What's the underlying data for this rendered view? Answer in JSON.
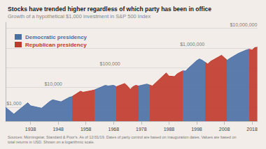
{
  "chart_data": {
    "type": "area",
    "title": "Stocks have trended higher regardless of which party has been in office",
    "subtitle": "Growth of a hypothetical $1,000 investment in S&P 500 Index",
    "footer": "Sources: Morningstar, Standard & Poor's. As of 12/31/19. Dates of party control are based on inauguration dates. Values are based on\ntotal returns in USD. Shown on a logarithmic scale.",
    "title_color": "#1a1a1a",
    "subtitle_color": "#888888",
    "background_color": "#f2ede8",
    "log": "y",
    "x": [
      1929,
      1932,
      1933,
      1937,
      1938,
      1942,
      1945,
      1946,
      1949,
      1952,
      1953,
      1956,
      1957,
      1960,
      1961,
      1965,
      1966,
      1968,
      1969,
      1972,
      1973,
      1974,
      1975,
      1976,
      1977,
      1980,
      1981,
      1982,
      1987,
      1988,
      1990,
      1991,
      1993,
      1994,
      1995,
      1998,
      1999,
      2000,
      2002,
      2003,
      2007,
      2009,
      2010,
      2013,
      2016,
      2017,
      2018,
      2019,
      2019.9
    ],
    "values": [
      1000,
      450,
      600,
      1700,
      1200,
      900,
      2000,
      2400,
      1900,
      3200,
      3500,
      6500,
      5800,
      7000,
      7500,
      13000,
      12000,
      13000,
      11000,
      16000,
      12000,
      8000,
      11000,
      13000,
      12000,
      15000,
      13500,
      12000,
      55000,
      38000,
      36000,
      50000,
      70000,
      68000,
      95000,
      230000,
      280000,
      240000,
      155000,
      210000,
      430000,
      240000,
      300000,
      530000,
      800000,
      870000,
      780000,
      1050000,
      1100000
    ],
    "xlim": [
      1929,
      2020
    ],
    "xticks": [
      1938,
      1948,
      1958,
      1968,
      1978,
      1988,
      1998,
      2008,
      2018
    ],
    "ylim": [
      200,
      20000000
    ],
    "yticks": [
      1000,
      10000,
      100000,
      1000000,
      10000000
    ],
    "grid": true,
    "tick_labels": "x",
    "legend": "upper left",
    "parties": [
      {
        "party": "dem",
        "name": "Democratic presidency",
        "color": "#4a6fa5"
      },
      {
        "party": "rep",
        "name": "Republican presidency",
        "color": "#c0392b"
      }
    ],
    "periods": [
      {
        "start": 1929,
        "end": 1933,
        "party": "dem"
      },
      {
        "start": 1933,
        "end": 1953,
        "party": "dem"
      },
      {
        "start": 1953,
        "end": 1961,
        "party": "rep"
      },
      {
        "start": 1961,
        "end": 1969,
        "party": "dem"
      },
      {
        "start": 1969,
        "end": 1977,
        "party": "rep"
      },
      {
        "start": 1977,
        "end": 1981,
        "party": "dem"
      },
      {
        "start": 1981,
        "end": 1993,
        "party": "rep"
      },
      {
        "start": 1993,
        "end": 2001,
        "party": "dem"
      },
      {
        "start": 2001,
        "end": 2009,
        "party": "rep"
      },
      {
        "start": 2009,
        "end": 2017,
        "party": "dem"
      },
      {
        "start": 2017,
        "end": 2020,
        "party": "rep"
      }
    ],
    "annotations": [
      {
        "x": 1929.3,
        "y": 1000,
        "text": "$1,000"
      },
      {
        "x": 1943,
        "y": 10000,
        "text": "$10,000"
      },
      {
        "x": 1963,
        "y": 100000,
        "text": "$100,000"
      },
      {
        "x": 1992,
        "y": 1000000,
        "text": "$1,000,000"
      },
      {
        "x": 2010,
        "y": 10000000,
        "text": "$10,000,000"
      }
    ]
  }
}
